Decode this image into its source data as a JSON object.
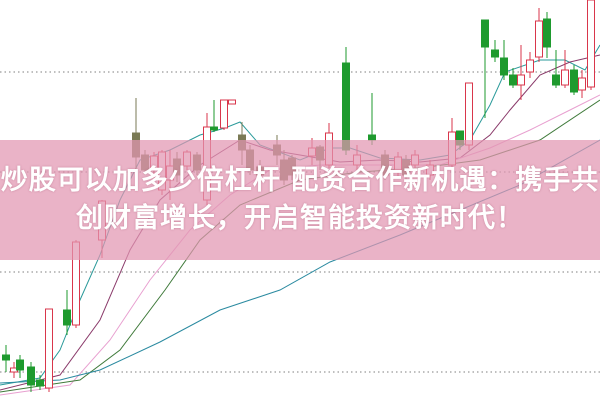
{
  "headline": {
    "line1": "炒股可以加多少倍杠杆 配资合作新机遇：携手共",
    "line2": "创财富增长，开启智能投资新时代！"
  },
  "colors": {
    "up_candle": "#d9364b",
    "down_candle": "#1e9a2e",
    "down_candle_muted": "#7a7a55",
    "banner": "#e296b2",
    "grid": "#999999",
    "ma_lines": [
      "#2a9a9a",
      "#8a3a6a",
      "#e8a0d0",
      "#3f7a3a",
      "#2a8aa0"
    ]
  }
}
